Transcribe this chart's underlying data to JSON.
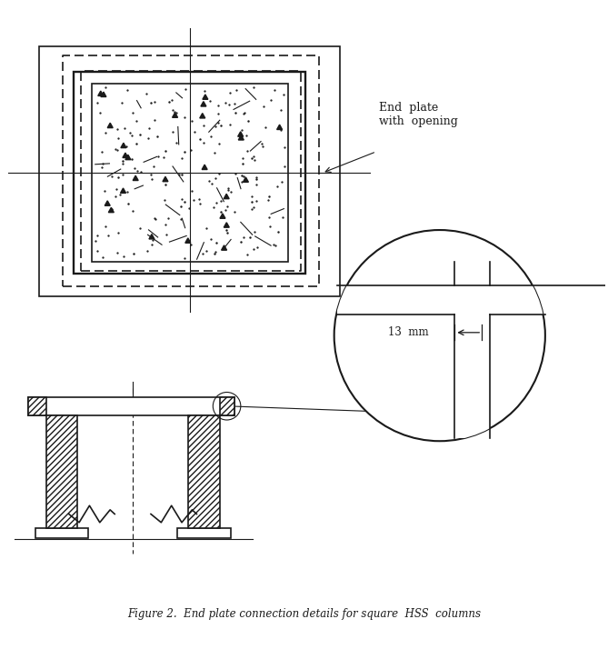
{
  "line_color": "#1a1a1a",
  "title_text": "Figure 2.  End plate connection details for square  HSS  columns",
  "annotation_text": "End  plate\nwith  opening",
  "dim_text": "13  mm"
}
